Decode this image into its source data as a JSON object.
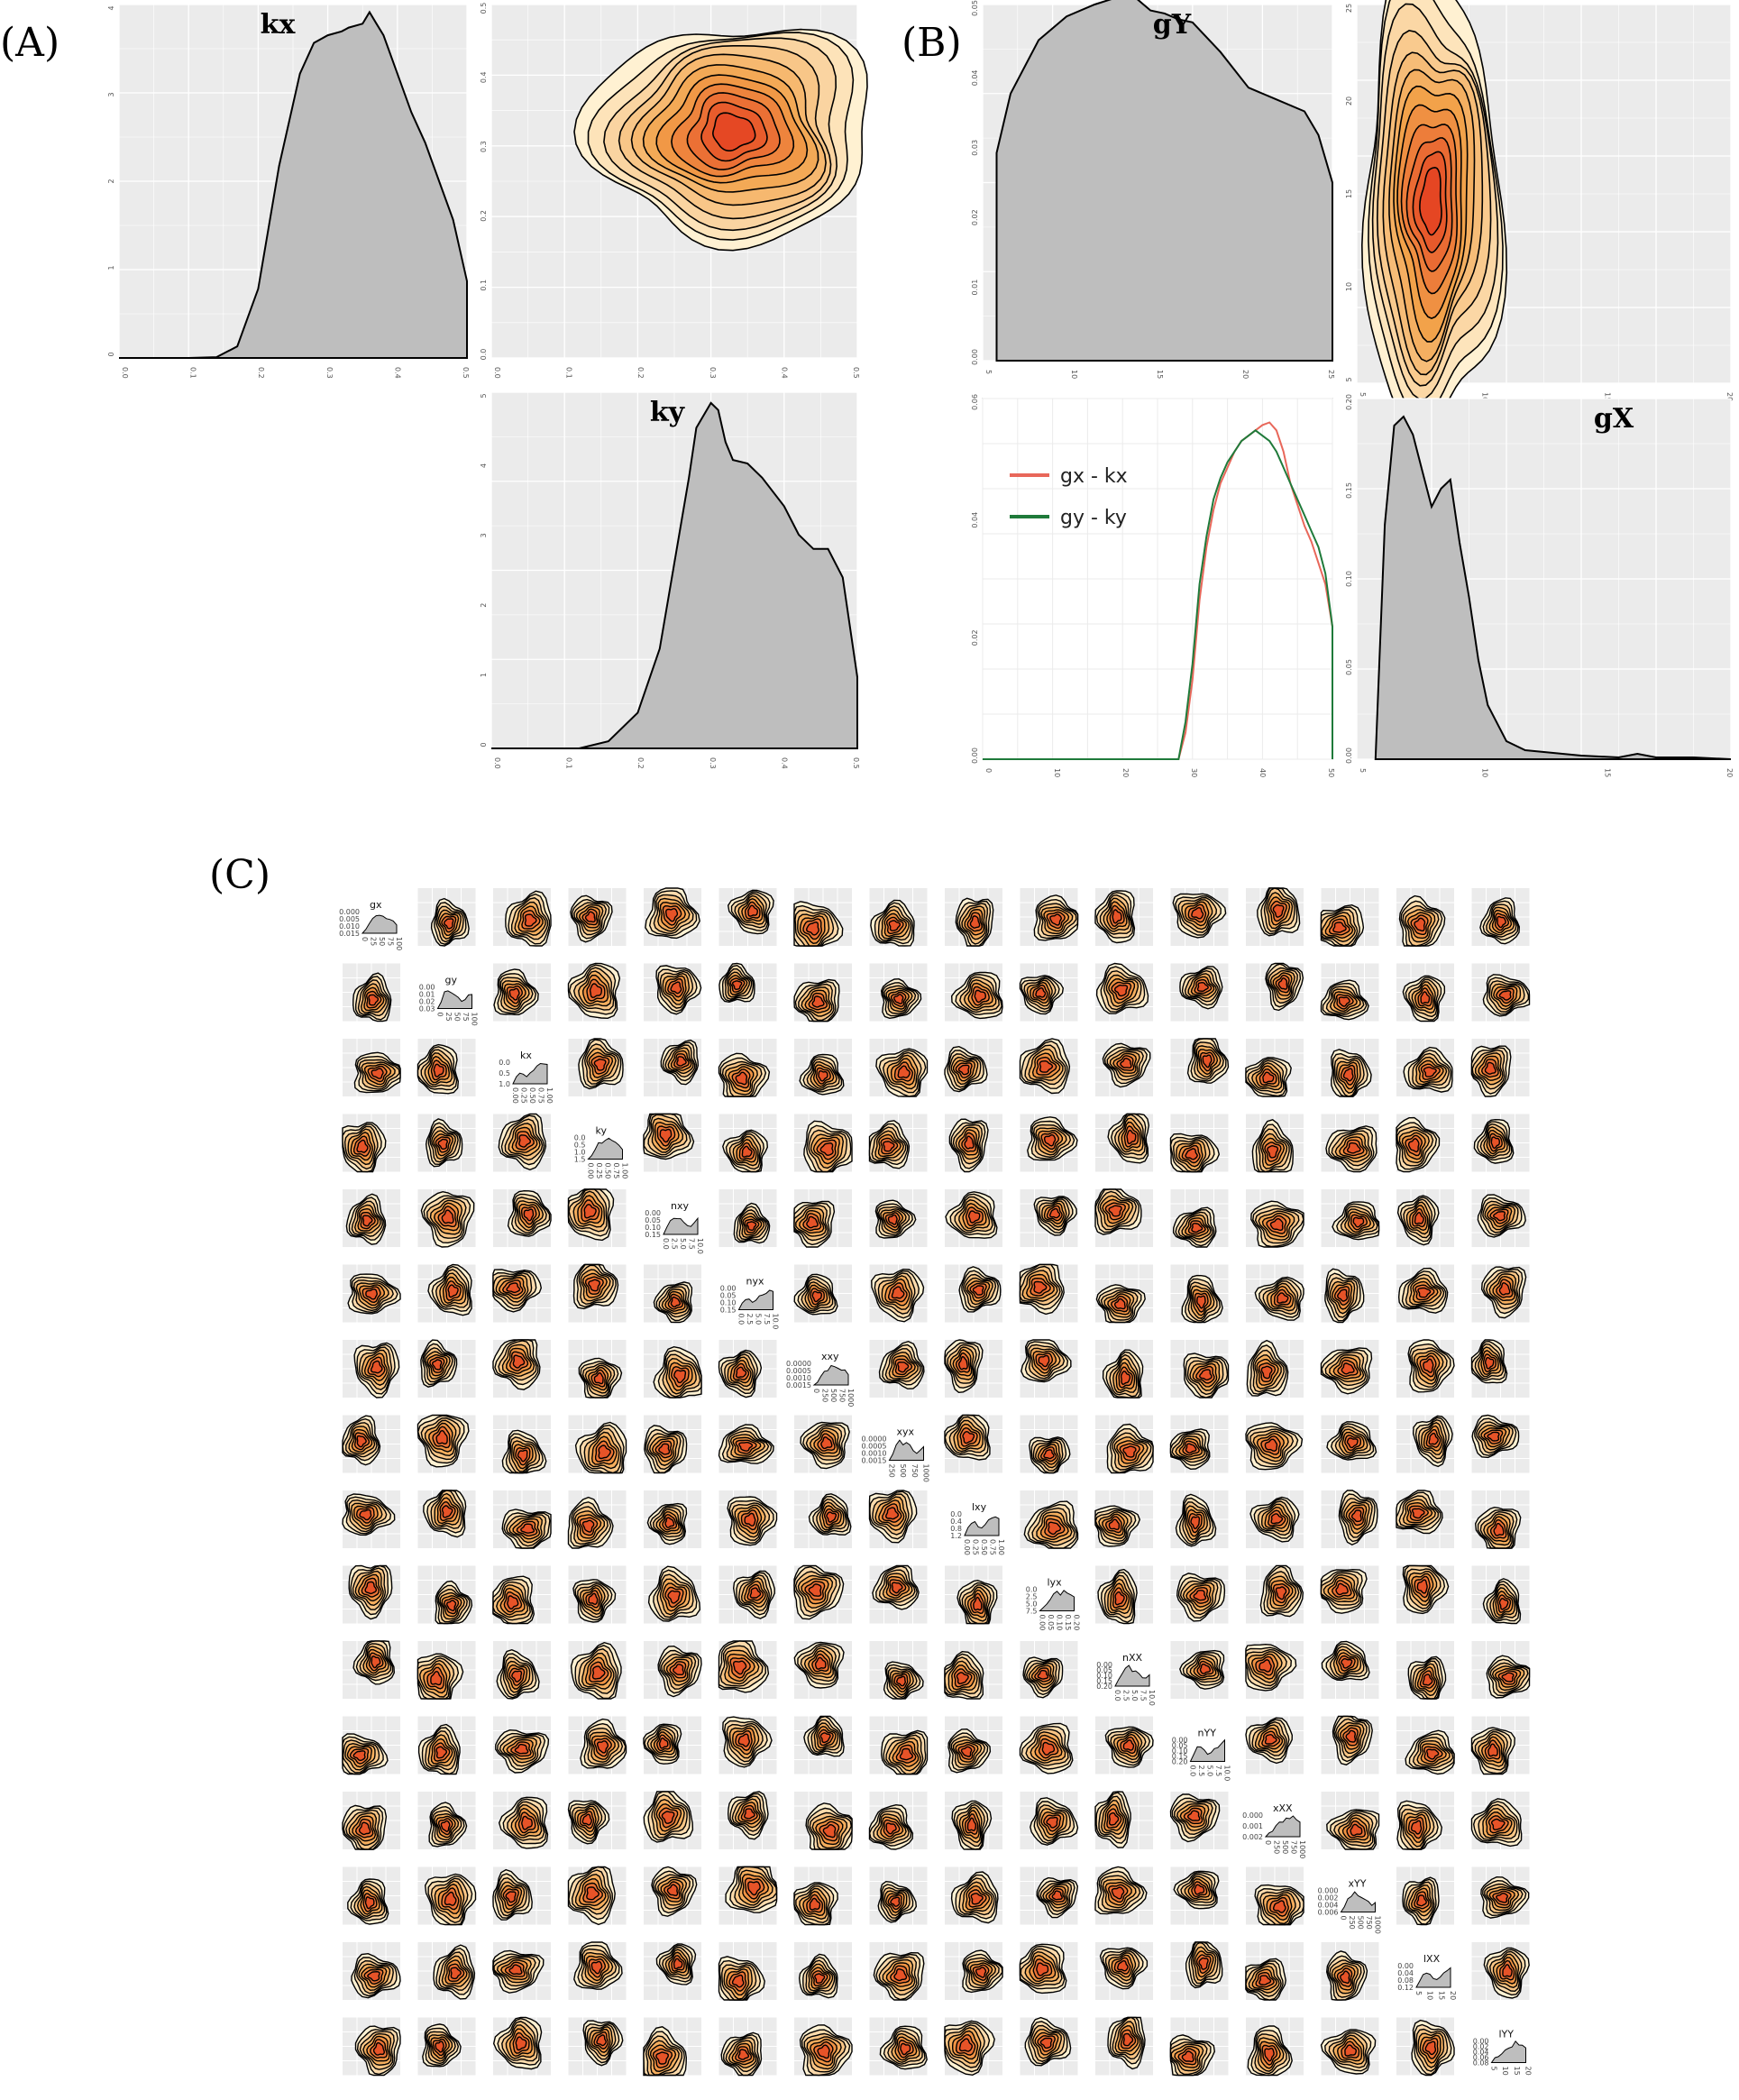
{
  "panels": {
    "a": "(A)",
    "b": "(B)",
    "c": "(C)"
  },
  "colors": {
    "panel_bg": "#ebebeb",
    "grid": "#ffffff",
    "density_fill": "#bebebe",
    "contour_line": "#000000",
    "heat_low": "#fff1d2",
    "heat_high": "#e2341b",
    "line_red": "#e8675a",
    "line_green": "#1f7a3a"
  },
  "chart_data": [
    {
      "id": "A-kx",
      "type": "area",
      "title": "kx",
      "x_ticks": [
        "0.0",
        "0.1",
        "0.2",
        "0.3",
        "0.4",
        "0.5"
      ],
      "y_ticks": [
        "0",
        "1",
        "2",
        "3",
        "4"
      ],
      "xlim": [
        0,
        0.5
      ],
      "ylim": [
        0,
        4.6
      ],
      "x": [
        0,
        0.1,
        0.14,
        0.17,
        0.2,
        0.23,
        0.26,
        0.28,
        0.3,
        0.32,
        0.33,
        0.35,
        0.36,
        0.37,
        0.38,
        0.4,
        0.42,
        0.44,
        0.46,
        0.48,
        0.5,
        0.5
      ],
      "y": [
        0,
        0,
        0.01,
        0.15,
        0.9,
        2.5,
        3.7,
        4.1,
        4.2,
        4.25,
        4.3,
        4.35,
        4.5,
        4.35,
        4.2,
        3.7,
        3.2,
        2.8,
        2.3,
        1.8,
        1.0,
        0
      ]
    },
    {
      "id": "A-contour",
      "type": "heatmap",
      "x_ticks": [
        "0.0",
        "0.1",
        "0.2",
        "0.3",
        "0.4",
        "0.5"
      ],
      "y_ticks": [
        "0.0",
        "0.1",
        "0.2",
        "0.3",
        "0.4",
        "0.5"
      ],
      "xlim": [
        0,
        0.5
      ],
      "ylim": [
        0,
        0.5
      ],
      "center": [
        0.33,
        0.32
      ],
      "spread": [
        0.09,
        0.075
      ],
      "levels": 11
    },
    {
      "id": "A-ky",
      "type": "area",
      "title": "ky",
      "x_ticks": [
        "0.0",
        "0.1",
        "0.2",
        "0.3",
        "0.4",
        "0.5"
      ],
      "y_ticks": [
        "0",
        "1",
        "2",
        "3",
        "4",
        "5"
      ],
      "xlim": [
        0,
        0.5
      ],
      "ylim": [
        0,
        5
      ],
      "x": [
        0,
        0.12,
        0.16,
        0.2,
        0.23,
        0.25,
        0.27,
        0.28,
        0.3,
        0.31,
        0.32,
        0.33,
        0.35,
        0.37,
        0.4,
        0.42,
        0.44,
        0.46,
        0.48,
        0.5,
        0.5
      ],
      "y": [
        0,
        0,
        0.1,
        0.5,
        1.4,
        2.6,
        3.8,
        4.5,
        4.85,
        4.75,
        4.3,
        4.05,
        4.0,
        3.8,
        3.4,
        3.0,
        2.8,
        2.8,
        2.4,
        1.0,
        0
      ]
    },
    {
      "id": "B-gY",
      "type": "area",
      "title": "gY",
      "x_ticks": [
        "5",
        "10",
        "15",
        "20",
        "25"
      ],
      "y_ticks": [
        "0.00",
        "0.01",
        "0.02",
        "0.03",
        "0.04",
        "0.05"
      ],
      "xlim": [
        0,
        25
      ],
      "ylim": [
        0,
        0.06
      ],
      "x": [
        1,
        2,
        4,
        6,
        8,
        10,
        11,
        12,
        13,
        14,
        15,
        17,
        19,
        21,
        23,
        24,
        25,
        25,
        1
      ],
      "y": [
        0.035,
        0.045,
        0.054,
        0.058,
        0.06,
        0.0615,
        0.061,
        0.059,
        0.0585,
        0.0575,
        0.057,
        0.052,
        0.046,
        0.044,
        0.042,
        0.038,
        0.03,
        0,
        0
      ]
    },
    {
      "id": "B-contour",
      "type": "heatmap",
      "x_ticks": [
        "5",
        "10",
        "15",
        "20"
      ],
      "y_ticks": [
        "5",
        "10",
        "15",
        "20",
        "25"
      ],
      "xlim": [
        0,
        20
      ],
      "ylim": [
        0,
        25
      ],
      "center": [
        4,
        12
      ],
      "spread": [
        1.8,
        7
      ],
      "levels": 12
    },
    {
      "id": "B-lines",
      "type": "line",
      "x_ticks": [
        "0",
        "10",
        "20",
        "30",
        "40",
        "50"
      ],
      "y_ticks": [
        "0.00",
        "0.02",
        "0.04",
        "0.06"
      ],
      "xlim": [
        0,
        50
      ],
      "ylim": [
        0,
        0.068
      ],
      "series": [
        {
          "name": "gx - kx",
          "x": [
            0,
            28,
            29,
            30,
            31,
            32,
            33,
            34,
            35,
            36,
            37,
            38,
            39,
            40,
            41,
            42,
            43,
            44,
            45,
            46,
            47,
            48,
            49,
            50,
            50
          ],
          "y": [
            0,
            0,
            0.005,
            0.015,
            0.03,
            0.04,
            0.047,
            0.052,
            0.055,
            0.058,
            0.06,
            0.061,
            0.062,
            0.063,
            0.0635,
            0.062,
            0.058,
            0.052,
            0.048,
            0.044,
            0.041,
            0.037,
            0.033,
            0.025,
            0
          ]
        },
        {
          "name": "gy - ky",
          "x": [
            0,
            28,
            29,
            30,
            31,
            32,
            33,
            34,
            35,
            36,
            37,
            38,
            39,
            40,
            41,
            42,
            43,
            44,
            45,
            46,
            47,
            48,
            49,
            50,
            50
          ],
          "y": [
            0,
            0,
            0.007,
            0.018,
            0.033,
            0.042,
            0.049,
            0.053,
            0.056,
            0.058,
            0.06,
            0.061,
            0.062,
            0.061,
            0.06,
            0.058,
            0.055,
            0.052,
            0.049,
            0.046,
            0.043,
            0.04,
            0.035,
            0.025,
            0
          ]
        }
      ]
    },
    {
      "id": "B-gX",
      "type": "area",
      "title": "gX",
      "x_ticks": [
        "5",
        "10",
        "15",
        "20"
      ],
      "y_ticks": [
        "0.00",
        "0.05",
        "0.10",
        "0.15",
        "0.20"
      ],
      "xlim": [
        0,
        20
      ],
      "ylim": [
        0,
        0.2
      ],
      "x": [
        1,
        1.5,
        2,
        2.5,
        3,
        3.5,
        4,
        4.5,
        5,
        5.5,
        6,
        6.5,
        7,
        8,
        9,
        10,
        12,
        14,
        15,
        16,
        18,
        20,
        20,
        1
      ],
      "y": [
        0,
        0.13,
        0.185,
        0.19,
        0.18,
        0.16,
        0.14,
        0.15,
        0.155,
        0.12,
        0.09,
        0.055,
        0.03,
        0.01,
        0.005,
        0.004,
        0.002,
        0.001,
        0.003,
        0.001,
        0.001,
        0,
        0,
        0
      ]
    },
    {
      "id": "C-matrix",
      "type": "heatmap",
      "variables": [
        "gx",
        "gy",
        "kx",
        "ky",
        "nxy",
        "nyx",
        "xxy",
        "xyx",
        "lxy",
        "lyx",
        "nXX",
        "nYY",
        "xXX",
        "xYY",
        "lXX",
        "lYY"
      ],
      "diagonal_y_ticks": [
        [
          "0.015",
          "0.010",
          "0.005",
          "0.000"
        ],
        [
          "0.03",
          "0.02",
          "0.01",
          "0.00"
        ],
        [
          "1.0",
          "0.5",
          "0.0"
        ],
        [
          "1.5",
          "1.0",
          "0.5",
          "0.0"
        ],
        [
          "0.15",
          "0.10",
          "0.05",
          "0.00"
        ],
        [
          "0.15",
          "0.10",
          "0.05",
          "0.00"
        ],
        [
          "0.0015",
          "0.0010",
          "0.0005",
          "0.0000"
        ],
        [
          "0.0015",
          "0.0010",
          "0.0005",
          "0.0000"
        ],
        [
          "1.2",
          "0.8",
          "0.4",
          "0.0"
        ],
        [
          "7.5",
          "5.0",
          "2.5",
          "0.0"
        ],
        [
          "0.20",
          "0.15",
          "0.10",
          "0.05",
          "0.00"
        ],
        [
          "0.20",
          "0.15",
          "0.10",
          "0.05",
          "0.00"
        ],
        [
          "0.002",
          "0.001",
          "0.000"
        ],
        [
          "0.006",
          "0.004",
          "0.002",
          "0.000"
        ],
        [
          "0.12",
          "0.08",
          "0.04",
          "0.00"
        ],
        [
          "0.08",
          "0.06",
          "0.04",
          "0.02",
          "0.00"
        ]
      ],
      "diagonal_x_ticks": [
        [
          "0",
          "25",
          "50",
          "75",
          "100"
        ],
        [
          "0",
          "25",
          "50",
          "75",
          "100"
        ],
        [
          "0.00",
          "0.25",
          "0.50",
          "0.75",
          "1.00"
        ],
        [
          "0.00",
          "0.25",
          "0.50",
          "0.75",
          "1.00"
        ],
        [
          "0.0",
          "2.5",
          "5.0",
          "7.5",
          "10.0"
        ],
        [
          "0.0",
          "2.5",
          "5.0",
          "7.5",
          "10.0"
        ],
        [
          "0",
          "250",
          "500",
          "750",
          "1000"
        ],
        [
          "250",
          "500",
          "750",
          "1000"
        ],
        [
          "0.00",
          "0.25",
          "0.50",
          "0.75",
          "1.00"
        ],
        [
          "0.00",
          "0.05",
          "0.10",
          "0.15",
          "0.20"
        ],
        [
          "0.0",
          "2.5",
          "5.0",
          "7.5",
          "10.0"
        ],
        [
          "0.0",
          "2.5",
          "5.0",
          "7.5",
          "10.0"
        ],
        [
          "0",
          "250",
          "500",
          "750",
          "1000"
        ],
        [
          "0",
          "250",
          "500",
          "750",
          "1000"
        ],
        [
          "5",
          "10",
          "15",
          "20"
        ],
        [
          "5",
          "10",
          "15",
          "20"
        ]
      ]
    }
  ],
  "legend": {
    "items": [
      "gx - kx",
      "gy - ky"
    ]
  }
}
